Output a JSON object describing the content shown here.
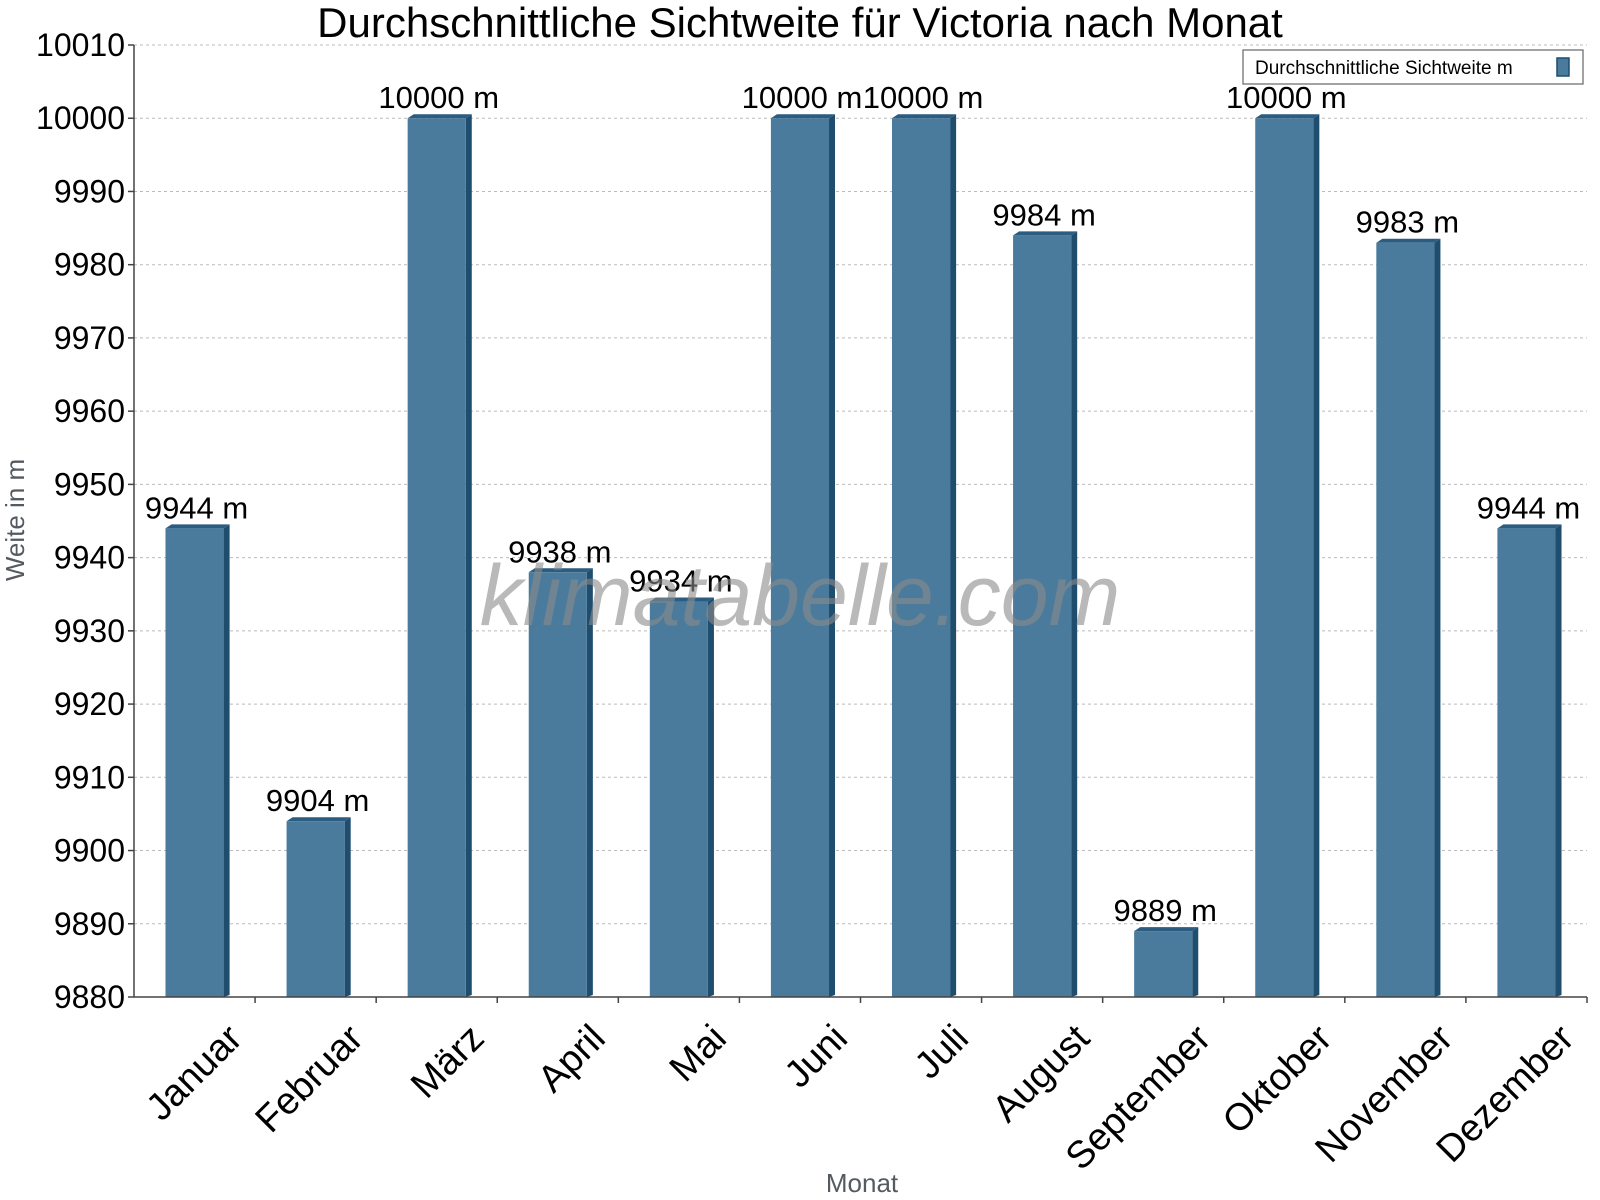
{
  "chart_data": {
    "type": "bar",
    "title": "Durchschnittliche Sichtweite für Victoria nach Monat",
    "xlabel": "Monat",
    "ylabel": "Weite in m",
    "categories": [
      "Januar",
      "Februar",
      "März",
      "April",
      "Mai",
      "Juni",
      "Juli",
      "August",
      "September",
      "Oktober",
      "November",
      "Dezember"
    ],
    "series": [
      {
        "name": "Durchschnittliche Sichtweite m",
        "values": [
          9944,
          9904,
          10000,
          9938,
          9934,
          10000,
          10000,
          9984,
          9889,
          10000,
          9983,
          9944
        ],
        "labels": [
          "9944 m",
          "9904 m",
          "10000 m",
          "9938 m",
          "9934 m",
          "10000 m",
          "10000 m",
          "9984 m",
          "9889 m",
          "10000 m",
          "9983 m",
          "9944 m"
        ]
      }
    ],
    "ylim": [
      9880,
      10010
    ],
    "yticks": [
      9880,
      9890,
      9900,
      9910,
      9920,
      9930,
      9940,
      9950,
      9960,
      9970,
      9980,
      9990,
      10000,
      10010
    ],
    "grid": true,
    "legend_position": "top-right",
    "watermark": "klimatabelle.com",
    "colors": {
      "bar_front": "#4a7b9d",
      "bar_side": "#1f4d6e",
      "bar_top": "#2c5c80",
      "grid": "#bbbbbb",
      "axis": "#444444"
    }
  }
}
